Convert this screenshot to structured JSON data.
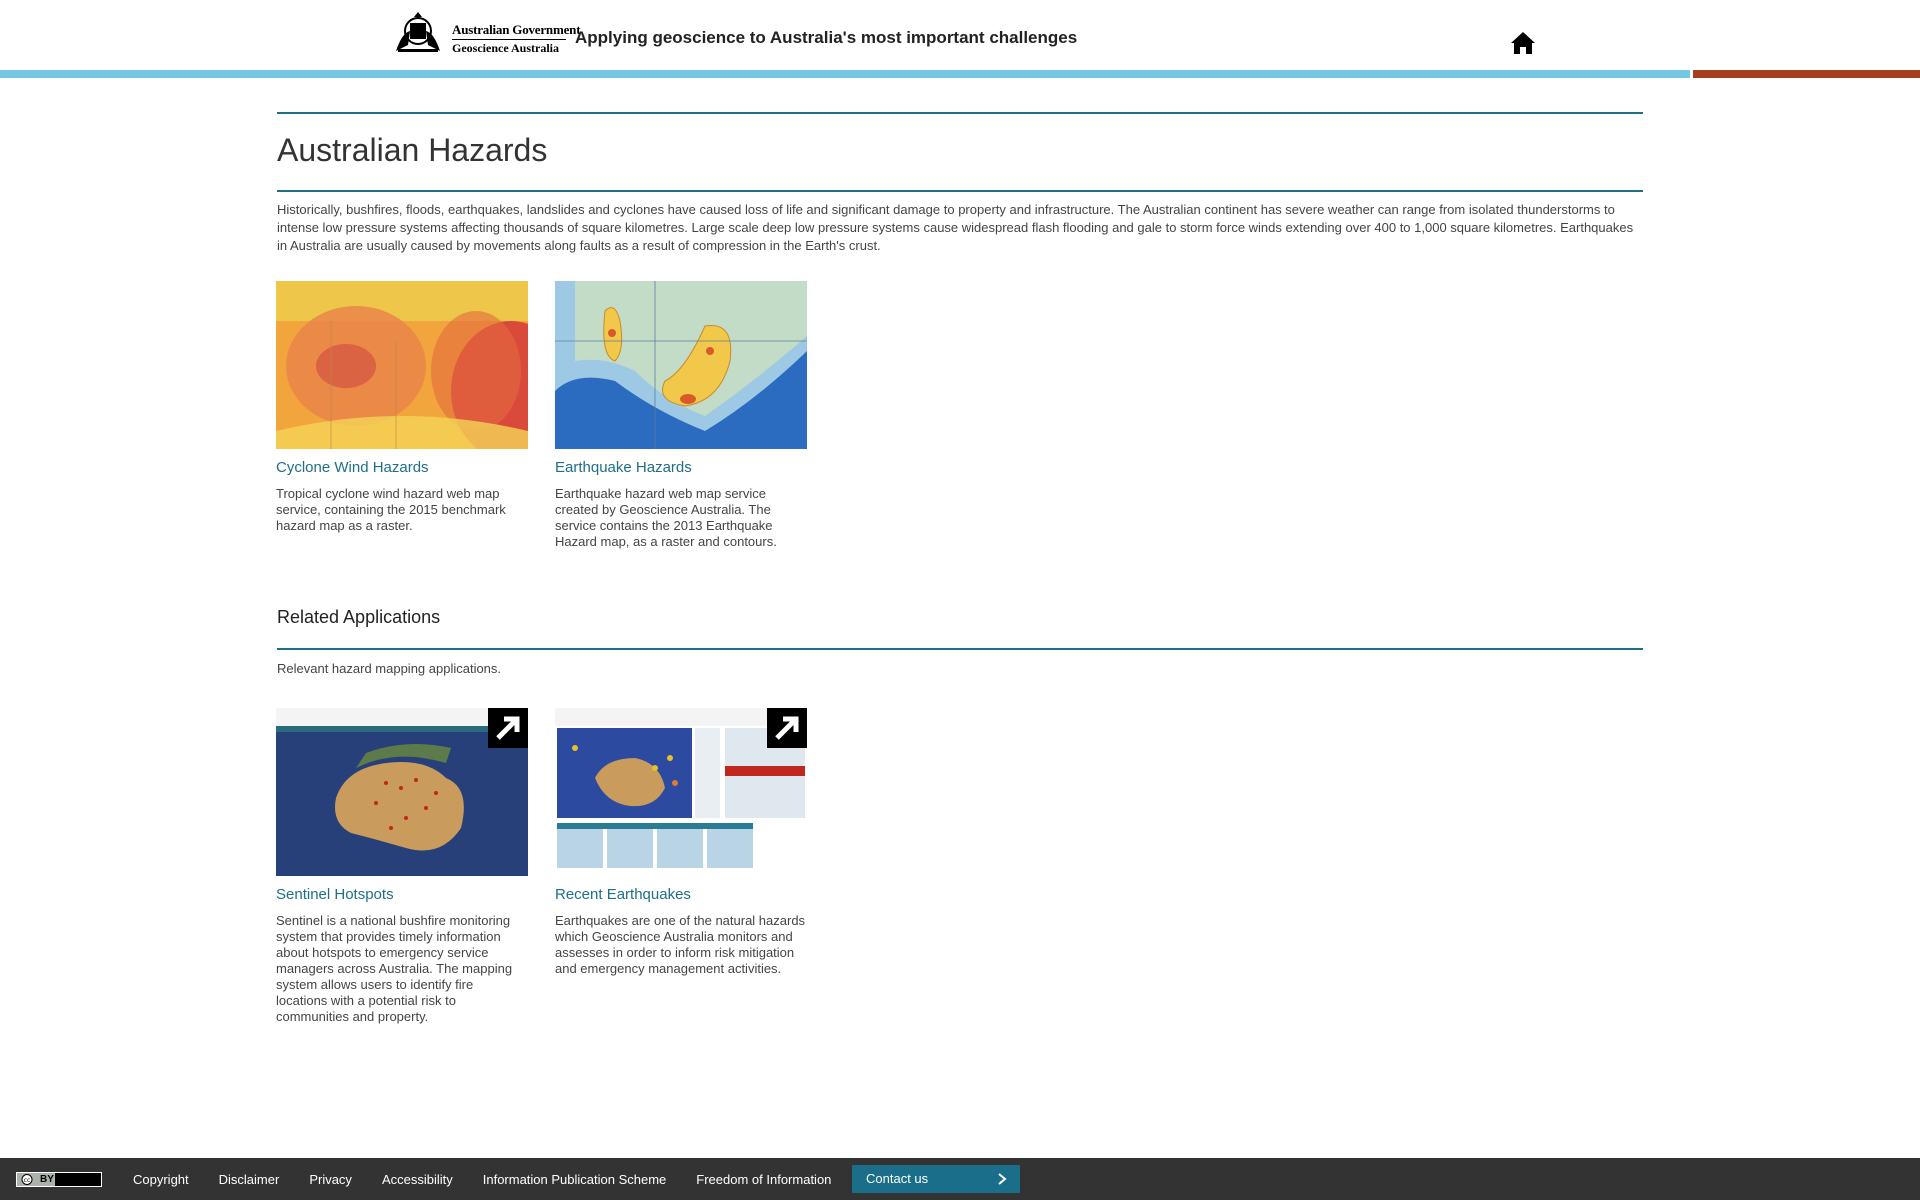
{
  "header": {
    "gov_line1": "Australian Government",
    "gov_line2": "Geoscience Australia",
    "tagline": "Applying geoscience to Australia's most important challenges",
    "home_icon": "home-icon"
  },
  "main": {
    "title": "Australian Hazards",
    "intro": "Historically, bushfires, floods, earthquakes, landslides and cyclones have caused loss of life and significant damage to property and infrastructure. The Australian continent has severe weather can range from isolated thunderstorms to intense low pressure systems affecting thousands of square kilometres. Large scale deep low pressure systems cause widespread flash flooding and gale to storm force winds extending over 400 to 1,000 square kilometres. Earthquakes in Australia are usually caused by movements along faults as a result of compression in the Earth's crust.",
    "hazards": [
      {
        "title": "Cyclone Wind Hazards",
        "description": "Tropical cyclone wind hazard web map service, containing the 2015 benchmark hazard map as a raster."
      },
      {
        "title": "Earthquake Hazards",
        "description": "Earthquake hazard web map service created by Geoscience Australia. The service contains the 2013 Earthquake Hazard map, as a raster and contours."
      }
    ],
    "related": {
      "title": "Related Applications",
      "subtitle": "Relevant hazard mapping applications.",
      "apps": [
        {
          "title": "Sentinel Hotspots",
          "description": "Sentinel is a national bushfire monitoring system that provides timely information about hotspots to emergency service managers across Australia. The mapping system allows users to identify fire locations with a potential risk to communities and property."
        },
        {
          "title": "Recent Earthquakes",
          "description": "Earthquakes are one of the natural hazards which Geoscience Australia monitors and assesses in order to inform risk mitigation and emergency management activities."
        }
      ]
    }
  },
  "footer": {
    "license_badge": "BY",
    "links": [
      "Copyright",
      "Disclaimer",
      "Privacy",
      "Accessibility",
      "Information Publication Scheme",
      "Freedom of Information"
    ],
    "contact_label": "Contact us"
  },
  "colors": {
    "accent_teal": "#1e6f86",
    "stripe_blue": "#74c6e2",
    "stripe_rust": "#a4401f",
    "footer_bg": "#333333",
    "contact_bg": "#1a6e89"
  }
}
